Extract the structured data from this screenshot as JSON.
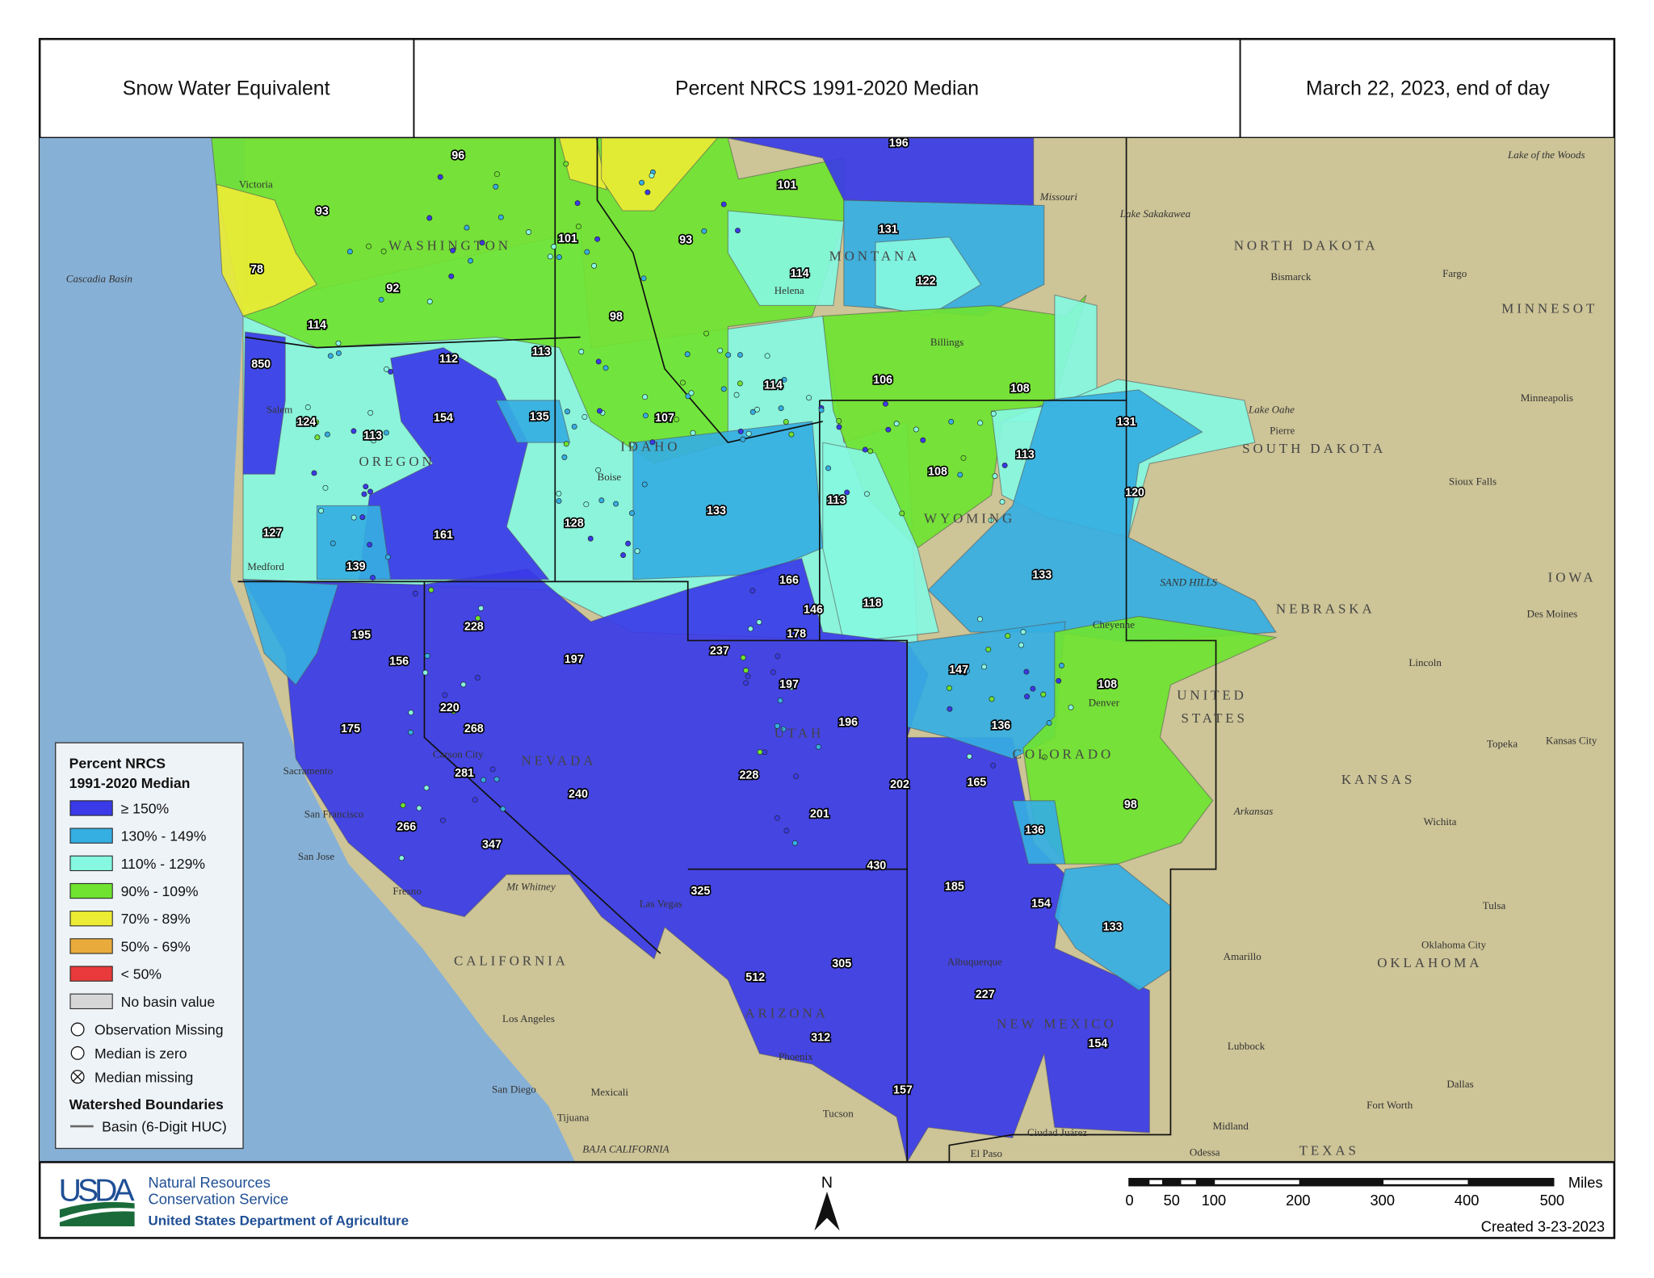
{
  "header": {
    "left_title": "Snow Water Equivalent",
    "center_title": "Percent NRCS 1991-2020 Median",
    "right_title": "March 22, 2023, end of day"
  },
  "legend": {
    "title_line1": "Percent NRCS",
    "title_line2": "1991-2020 Median",
    "classes": [
      {
        "label": "≥ 150%",
        "color": "#3a3ae8"
      },
      {
        "label": "130% - 149%",
        "color": "#35aee2"
      },
      {
        "label": "110% - 129%",
        "color": "#86f7e0"
      },
      {
        "label": "90% - 109%",
        "color": "#6fe330"
      },
      {
        "label": "70% - 89%",
        "color": "#ecec34"
      },
      {
        "label": "50% - 69%",
        "color": "#e9ab3c"
      },
      {
        "label": "< 50%",
        "color": "#e83a3a"
      },
      {
        "label": "No basin value",
        "color": "#d6d6d6"
      }
    ],
    "symbols": [
      {
        "label": "Observation Missing",
        "icon": "circle-icon"
      },
      {
        "label": "Median is zero",
        "icon": "circle-icon"
      },
      {
        "label": "Median missing",
        "icon": "circle-x-icon"
      }
    ],
    "boundaries_title": "Watershed Boundaries",
    "boundary_label": "Basin (6-Digit HUC)"
  },
  "basin_values": [
    196,
    101,
    131,
    93,
    96,
    101,
    93,
    114,
    122,
    78,
    92,
    98,
    114,
    850,
    112,
    113,
    106,
    108,
    114,
    154,
    135,
    107,
    131,
    124,
    113,
    108,
    113,
    120,
    113,
    133,
    128,
    161,
    127,
    139,
    133,
    166,
    146,
    118,
    195,
    228,
    178,
    237,
    197,
    156,
    147,
    108,
    197,
    220,
    268,
    196,
    175,
    136,
    281,
    228,
    202,
    165,
    240,
    98,
    201,
    266,
    136,
    347,
    430,
    185,
    325,
    154,
    133,
    305,
    512,
    227,
    312,
    154,
    157
  ],
  "places": {
    "states": [
      "NORTH DAKOTA",
      "SOUTH DAKOTA",
      "NEBRASKA",
      "KANSAS",
      "OKLAHOMA",
      "TEXAS",
      "IOWA",
      "MINNESOT",
      "MONTANA",
      "WYOMING",
      "OREGON",
      "NEVADA",
      "CALIFORNIA",
      "ARIZONA",
      "NEW MEXICO",
      "COLORADO",
      "IDAHO",
      "UTAH",
      "WASHINGTON",
      "UNITED",
      "STATES"
    ],
    "cities": [
      "Bismarck",
      "Fargo",
      "Pierre",
      "Minneapolis",
      "Sioux Falls",
      "Des Moines",
      "Lincoln",
      "Topeka",
      "Kansas City",
      "Wichita",
      "Tulsa",
      "Oklahoma City",
      "Amarillo",
      "Lubbock",
      "Dallas",
      "Fort Worth",
      "Midland",
      "Odessa",
      "El Paso",
      "Ciudad Juárez",
      "Tucson",
      "Phoenix",
      "Albuquerque",
      "Denver",
      "Cheyenne",
      "Billings",
      "Helena",
      "Boise",
      "Salem",
      "Medford",
      "Sacramento",
      "San Francisco",
      "San Jose",
      "Fresno",
      "Los Angeles",
      "San Diego",
      "Tijuana",
      "Mexicali",
      "Las Vegas",
      "Carson City",
      "Victoria"
    ],
    "features": [
      "Cascadia Basin",
      "Lake of the Woods",
      "Lake Sakakawea",
      "Lake Oahe",
      "Missouri",
      "Arkansas",
      "SAND HILLS",
      "BAJA CALIFORNIA",
      "Mt Whitney"
    ]
  },
  "footer": {
    "agency_logo": "USDA",
    "agency_line1": "Natural Resources",
    "agency_line2": "Conservation Service",
    "department": "United States Department of Agriculture",
    "north_label": "N",
    "scale_ticks": [
      "0",
      "50",
      "100",
      "200",
      "300",
      "400",
      "500"
    ],
    "scale_unit": "Miles",
    "created": "Created 3-23-2023"
  },
  "colors": {
    "ocean": "#86b0d6",
    "land": "#cdc497"
  }
}
